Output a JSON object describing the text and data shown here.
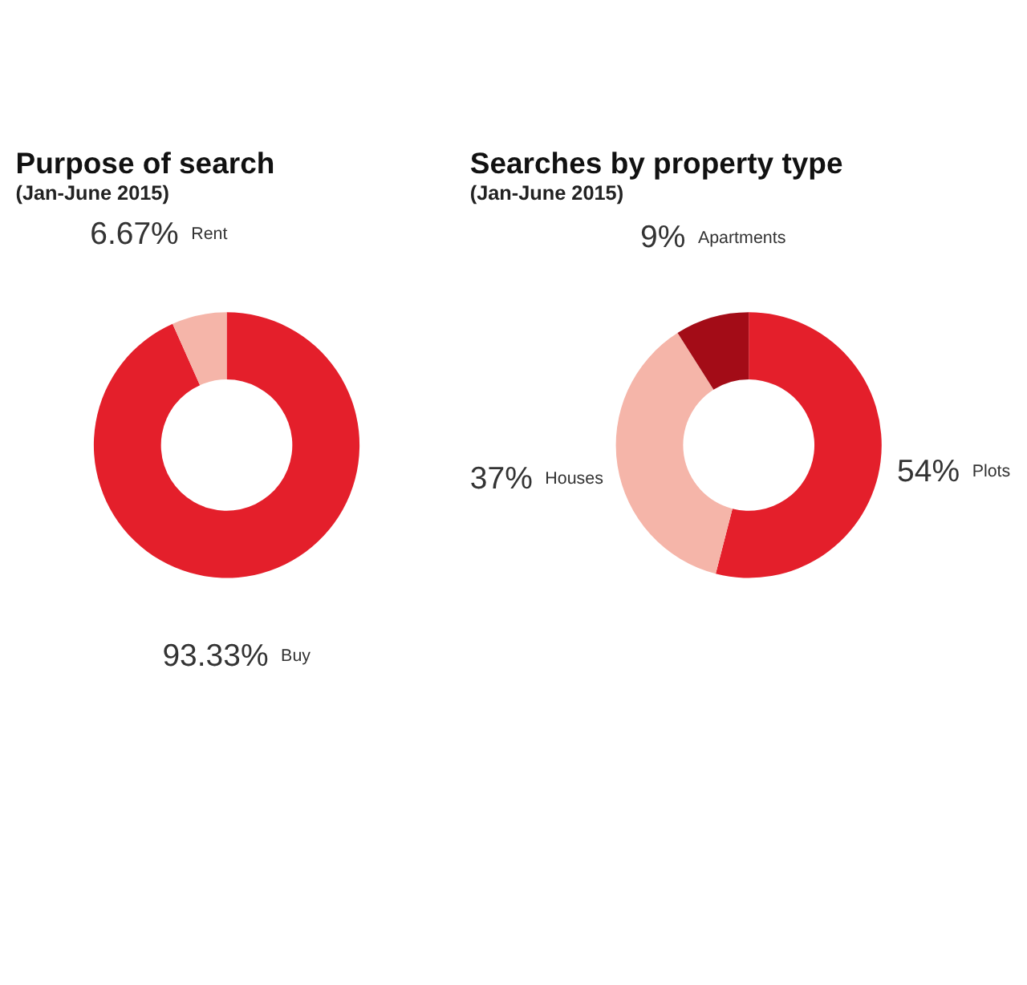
{
  "chart_data": [
    {
      "type": "donut",
      "title": "Purpose of search",
      "subtitle": "(Jan-June 2015)",
      "categories": [
        "Buy",
        "Rent"
      ],
      "values": [
        93.33,
        6.67
      ],
      "colors": [
        "#e41f2b",
        "#f5b5a9"
      ],
      "value_labels": [
        "93.33%",
        "6.67%"
      ],
      "legend": false
    },
    {
      "type": "donut",
      "title": "Searches by property type",
      "subtitle": "(Jan-June 2015)",
      "categories": [
        "Plots",
        "Houses",
        "Apartments"
      ],
      "values": [
        54,
        37,
        9
      ],
      "colors": [
        "#e41f2b",
        "#f5b5a9",
        "#a30c17"
      ],
      "value_labels": [
        "54%",
        "37%",
        "9%"
      ],
      "legend": false
    }
  ]
}
